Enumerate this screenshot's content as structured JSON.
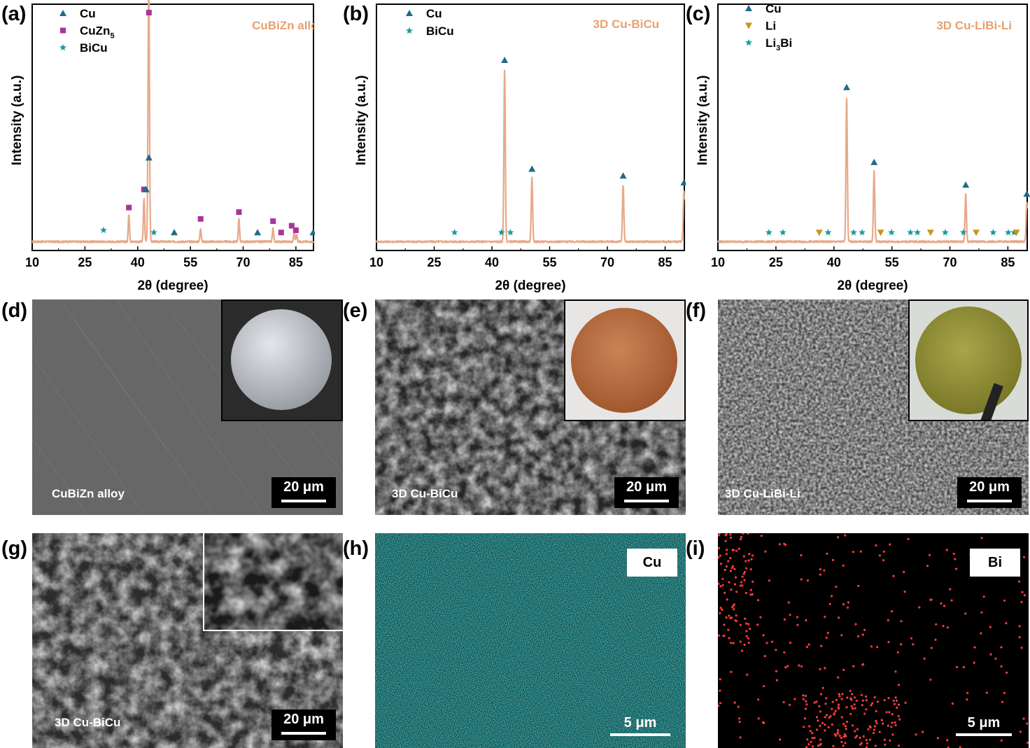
{
  "panels": {
    "a": "(a)",
    "b": "(b)",
    "c": "(c)",
    "d": "(d)",
    "e": "(e)",
    "f": "(f)",
    "g": "(g)",
    "h": "(h)",
    "i": "(i)"
  },
  "colors": {
    "pattern": "#e8a98a",
    "cu": "#1f6a8a",
    "cuzn5": "#a8359a",
    "bicu": "#1a9a9a",
    "li": "#c8951a",
    "sample_label": "#e8a070"
  },
  "chart_data": [
    {
      "id": "a",
      "type": "line",
      "title": "CuBiZn alloy",
      "xlabel": "2θ (degree)",
      "ylabel": "Intensity (a.u.)",
      "xlim": [
        10,
        90
      ],
      "xticks": [
        "10",
        "25",
        "40",
        "55",
        "70",
        "85"
      ],
      "legend": [
        {
          "name": "Cu",
          "marker": "triangle",
          "color": "#1f6a8a"
        },
        {
          "name": "CuZn5",
          "name_main": "CuZn",
          "name_sub": "5",
          "marker": "square",
          "color": "#a8359a"
        },
        {
          "name": "BiCu",
          "marker": "star",
          "color": "#1a9a9a"
        }
      ],
      "legend_placement": "top-left",
      "peaks": [
        [
          37.5,
          0.12
        ],
        [
          41.8,
          0.19
        ],
        [
          43.2,
          0.97
        ],
        [
          43.0,
          0.33
        ],
        [
          57.9,
          0.06
        ],
        [
          68.8,
          0.1
        ],
        [
          78.5,
          0.06
        ],
        [
          84.5,
          0.04
        ],
        [
          85.2,
          0.03
        ]
      ],
      "markers": [
        {
          "x": 30.3,
          "y": 0.04,
          "marker": "star",
          "color": "#1a9a9a"
        },
        {
          "x": 37.5,
          "y": 0.14,
          "marker": "square",
          "color": "#a8359a"
        },
        {
          "x": 41.8,
          "y": 0.22,
          "marker": "square",
          "color": "#a8359a"
        },
        {
          "x": 42.4,
          "y": 0.22,
          "marker": "triangle",
          "color": "#1f6a8a"
        },
        {
          "x": 43.2,
          "y": 1.0,
          "marker": "square",
          "color": "#a8359a"
        },
        {
          "x": 43.2,
          "y": 0.36,
          "marker": "triangle",
          "color": "#1f6a8a"
        },
        {
          "x": 44.6,
          "y": 0.03,
          "marker": "star",
          "color": "#1a9a9a"
        },
        {
          "x": 50.4,
          "y": 0.03,
          "marker": "triangle",
          "color": "#1f6a8a"
        },
        {
          "x": 57.9,
          "y": 0.09,
          "marker": "square",
          "color": "#a8359a"
        },
        {
          "x": 68.8,
          "y": 0.12,
          "marker": "square",
          "color": "#a8359a"
        },
        {
          "x": 74.1,
          "y": 0.03,
          "marker": "triangle",
          "color": "#1f6a8a"
        },
        {
          "x": 78.5,
          "y": 0.08,
          "marker": "square",
          "color": "#a8359a"
        },
        {
          "x": 80.8,
          "y": 0.03,
          "marker": "square",
          "color": "#a8359a"
        },
        {
          "x": 83.8,
          "y": 0.06,
          "marker": "square",
          "color": "#a8359a"
        },
        {
          "x": 85.0,
          "y": 0.04,
          "marker": "square",
          "color": "#a8359a"
        },
        {
          "x": 89.9,
          "y": 0.03,
          "marker": "triangle",
          "color": "#1f6a8a"
        }
      ]
    },
    {
      "id": "b",
      "type": "line",
      "title": "3D Cu-BiCu",
      "xlabel": "2θ (degree)",
      "ylabel": "Intensity (a.u.)",
      "xlim": [
        10,
        90
      ],
      "xticks": [
        "10",
        "25",
        "40",
        "55",
        "70",
        "85"
      ],
      "legend": [
        {
          "name": "Cu",
          "marker": "triangle",
          "color": "#1f6a8a"
        },
        {
          "name": "BiCu",
          "marker": "star",
          "color": "#1a9a9a"
        }
      ],
      "legend_placement": "top-left",
      "peaks": [
        [
          43.3,
          0.76
        ],
        [
          50.4,
          0.28
        ],
        [
          74.1,
          0.25
        ],
        [
          89.9,
          0.22
        ]
      ],
      "markers": [
        {
          "x": 30.3,
          "y": 0.03,
          "marker": "star",
          "color": "#1a9a9a"
        },
        {
          "x": 42.5,
          "y": 0.03,
          "marker": "star",
          "color": "#1a9a9a"
        },
        {
          "x": 43.3,
          "y": 0.79,
          "marker": "triangle",
          "color": "#1f6a8a"
        },
        {
          "x": 44.8,
          "y": 0.03,
          "marker": "star",
          "color": "#1a9a9a"
        },
        {
          "x": 50.4,
          "y": 0.31,
          "marker": "triangle",
          "color": "#1f6a8a"
        },
        {
          "x": 74.1,
          "y": 0.28,
          "marker": "triangle",
          "color": "#1f6a8a"
        },
        {
          "x": 89.9,
          "y": 0.25,
          "marker": "triangle",
          "color": "#1f6a8a"
        }
      ]
    },
    {
      "id": "c",
      "type": "line",
      "title": "3D Cu-LiBi-Li",
      "xlabel": "2θ (degree)",
      "ylabel": "Intensity (a.u.)",
      "xlim": [
        10,
        90
      ],
      "xticks": [
        "10",
        "25",
        "40",
        "55",
        "70",
        "85"
      ],
      "legend": [
        {
          "name": "Cu",
          "marker": "triangle",
          "color": "#1f6a8a"
        },
        {
          "name": "Li",
          "marker": "triangle-down",
          "color": "#c8951a"
        },
        {
          "name": "Li3Bi",
          "name_main": "Li",
          "name_sub": "3",
          "name_tail": "Bi",
          "marker": "star",
          "color": "#1a9a9a"
        }
      ],
      "legend_placement": "top-left",
      "peaks": [
        [
          43.3,
          0.64
        ],
        [
          50.4,
          0.31
        ],
        [
          74.1,
          0.21
        ],
        [
          89.9,
          0.17
        ]
      ],
      "markers": [
        {
          "x": 23.2,
          "y": 0.03,
          "marker": "star",
          "color": "#1a9a9a"
        },
        {
          "x": 26.8,
          "y": 0.03,
          "marker": "star",
          "color": "#1a9a9a"
        },
        {
          "x": 36.2,
          "y": 0.03,
          "marker": "triangle-down",
          "color": "#c8951a"
        },
        {
          "x": 38.5,
          "y": 0.03,
          "marker": "star",
          "color": "#1a9a9a"
        },
        {
          "x": 43.3,
          "y": 0.67,
          "marker": "triangle",
          "color": "#1f6a8a"
        },
        {
          "x": 45.1,
          "y": 0.03,
          "marker": "star",
          "color": "#1a9a9a"
        },
        {
          "x": 47.3,
          "y": 0.03,
          "marker": "star",
          "color": "#1a9a9a"
        },
        {
          "x": 50.4,
          "y": 0.34,
          "marker": "triangle",
          "color": "#1f6a8a"
        },
        {
          "x": 52.1,
          "y": 0.03,
          "marker": "triangle-down",
          "color": "#c8951a"
        },
        {
          "x": 54.9,
          "y": 0.03,
          "marker": "star",
          "color": "#1a9a9a"
        },
        {
          "x": 59.8,
          "y": 0.03,
          "marker": "star",
          "color": "#1a9a9a"
        },
        {
          "x": 61.6,
          "y": 0.03,
          "marker": "star",
          "color": "#1a9a9a"
        },
        {
          "x": 65.0,
          "y": 0.03,
          "marker": "triangle-down",
          "color": "#c8951a"
        },
        {
          "x": 68.8,
          "y": 0.03,
          "marker": "star",
          "color": "#1a9a9a"
        },
        {
          "x": 73.5,
          "y": 0.03,
          "marker": "star",
          "color": "#1a9a9a"
        },
        {
          "x": 74.1,
          "y": 0.24,
          "marker": "triangle",
          "color": "#1f6a8a"
        },
        {
          "x": 76.8,
          "y": 0.03,
          "marker": "triangle-down",
          "color": "#c8951a"
        },
        {
          "x": 81.2,
          "y": 0.03,
          "marker": "star",
          "color": "#1a9a9a"
        },
        {
          "x": 85.1,
          "y": 0.03,
          "marker": "star",
          "color": "#1a9a9a"
        },
        {
          "x": 86.6,
          "y": 0.03,
          "marker": "star",
          "color": "#1a9a9a"
        },
        {
          "x": 87.2,
          "y": 0.03,
          "marker": "triangle-down",
          "color": "#c8951a"
        },
        {
          "x": 89.9,
          "y": 0.2,
          "marker": "triangle",
          "color": "#1f6a8a"
        }
      ]
    }
  ],
  "images": {
    "d": {
      "label": "CuBiZn alloy",
      "scale": "20 μm"
    },
    "e": {
      "label": "3D Cu-BiCu",
      "scale": "20 μm"
    },
    "f": {
      "label": "3D Cu-LiBi-Li",
      "scale": "20 μm"
    },
    "g": {
      "label": "3D Cu-BiCu",
      "scale": "20 μm"
    },
    "h": {
      "element": "Cu",
      "scale": "5 μm"
    },
    "i": {
      "element": "Bi",
      "scale": "5 μm"
    }
  }
}
